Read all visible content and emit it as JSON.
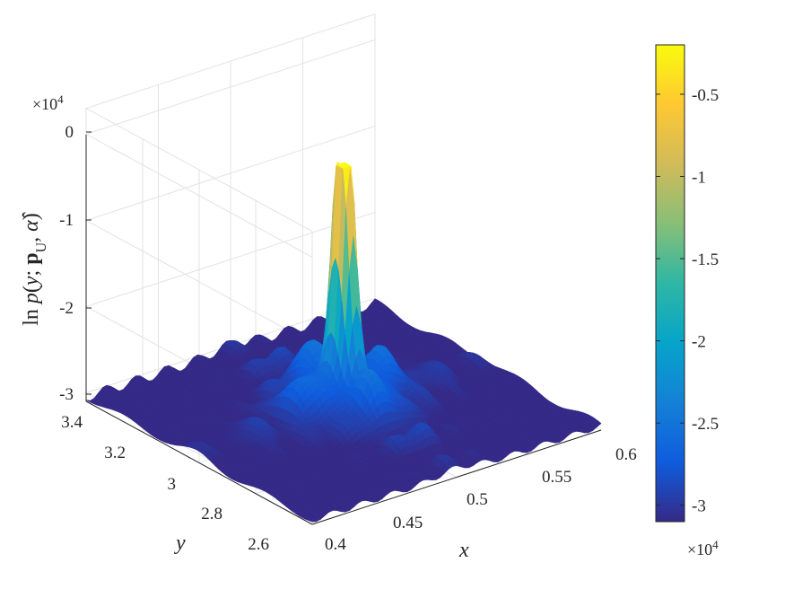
{
  "chart_data": {
    "type": "surface",
    "title": "",
    "xlabel": "x",
    "ylabel": "y",
    "zlabel": "ln p(y; p_U, α̂)",
    "x_ticks": [
      "0.4",
      "0.45",
      "0.5",
      "0.55",
      "0.6"
    ],
    "y_ticks": [
      "2.6",
      "2.8",
      "3",
      "3.2",
      "3.4"
    ],
    "z_ticks": [
      "-3",
      "-2",
      "-1",
      "0"
    ],
    "z_exponent": "×10^4",
    "colorbar_ticks": [
      "-0.5",
      "-1",
      "-1.5",
      "-2",
      "-2.5",
      "-3"
    ],
    "colorbar_exponent": "×10^4",
    "xlim": [
      0.4,
      0.6
    ],
    "ylim": [
      2.6,
      3.4
    ],
    "zlim": [
      -30000,
      0
    ],
    "colormap": "parula",
    "colormap_stops": [
      "#352a87",
      "#0f5cdd",
      "#1481d6",
      "#06a4ca",
      "#2eb7a4",
      "#87bf77",
      "#d1bb59",
      "#fec832",
      "#f9fb0e"
    ],
    "grid": true,
    "peak": {
      "x": 0.5,
      "y": 3.0,
      "z": -2000
    },
    "floor_z": -30500
  }
}
